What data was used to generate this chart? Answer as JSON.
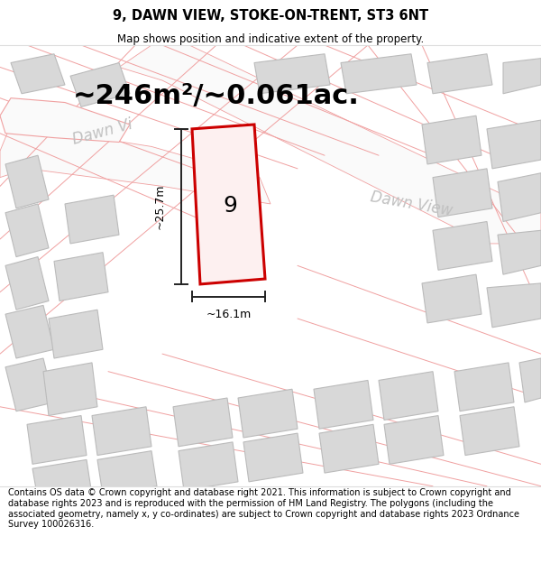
{
  "title": "9, DAWN VIEW, STOKE-ON-TRENT, ST3 6NT",
  "subtitle": "Map shows position and indicative extent of the property.",
  "footer": "Contains OS data © Crown copyright and database right 2021. This information is subject to Crown copyright and database rights 2023 and is reproduced with the permission of HM Land Registry. The polygons (including the associated geometry, namely x, y co-ordinates) are subject to Crown copyright and database rights 2023 Ordnance Survey 100026316.",
  "area_text": "~246m²/~0.061ac.",
  "width_label": "~16.1m",
  "height_label": "~25.7m",
  "plot_number": "9",
  "map_bg": "#f2f0f0",
  "building_fill": "#d8d8d8",
  "building_edge": "#bbbbbb",
  "road_fill": "#fafafa",
  "road_stroke": "#f0a0a0",
  "highlight_color": "#cc0000",
  "highlight_fill": "#fdf0f0",
  "dim_line_color": "#222222",
  "road_text_color": "#c0c0c0",
  "title_fontsize": 10.5,
  "subtitle_fontsize": 8.5,
  "footer_fontsize": 7.0,
  "area_fontsize": 22,
  "dim_fontsize": 9,
  "plot_label_fontsize": 18,
  "road_label_fontsize": 12
}
